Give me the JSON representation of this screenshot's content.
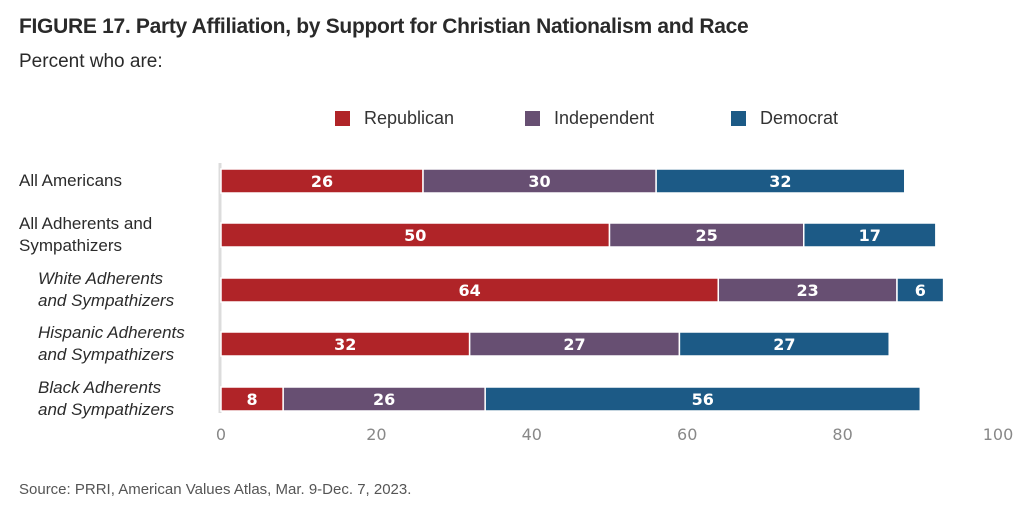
{
  "header": {
    "title": "FIGURE 17. Party Affiliation, by Support for Christian Nationalism and Race",
    "subtitle": "Percent who are:"
  },
  "footer": {
    "source": "Source: PRRI, American Values Atlas, Mar. 9-Dec. 7, 2023."
  },
  "chart_data": {
    "type": "bar",
    "orientation": "horizontal",
    "stacked": true,
    "title": "FIGURE 17. Party Affiliation, by Support for Christian Nationalism and Race",
    "subtitle": "Percent who are:",
    "xlabel": "",
    "ylabel": "",
    "xlim": [
      0,
      100
    ],
    "xticks": [
      0,
      20,
      40,
      60,
      80,
      100
    ],
    "grid": false,
    "legend_position": "top-center",
    "categories": [
      {
        "label": "All Americans",
        "italic": false
      },
      {
        "label": "All Adherents and Sympathizers",
        "italic": false
      },
      {
        "label": "White Adherents and Sympathizers",
        "italic": true
      },
      {
        "label": "Hispanic Adherents and Sympathizers",
        "italic": true
      },
      {
        "label": "Black Adherents and Sympathizers",
        "italic": true
      }
    ],
    "category_lines": [
      [
        "All Americans"
      ],
      [
        "All Adherents and",
        "Sympathizers"
      ],
      [
        "White Adherents",
        "and Sympathizers"
      ],
      [
        "Hispanic Adherents",
        "and Sympathizers"
      ],
      [
        "Black Adherents",
        "and Sympathizers"
      ]
    ],
    "series": [
      {
        "name": "Republican",
        "color": "#b02428",
        "values": [
          26,
          50,
          64,
          32,
          8
        ]
      },
      {
        "name": "Independent",
        "color": "#674f72",
        "values": [
          30,
          25,
          23,
          27,
          26
        ]
      },
      {
        "name": "Democrat",
        "color": "#1c5a86",
        "values": [
          32,
          17,
          6,
          27,
          56
        ]
      }
    ],
    "source": "Source: PRRI, American Values Atlas, Mar. 9-Dec. 7, 2023."
  }
}
